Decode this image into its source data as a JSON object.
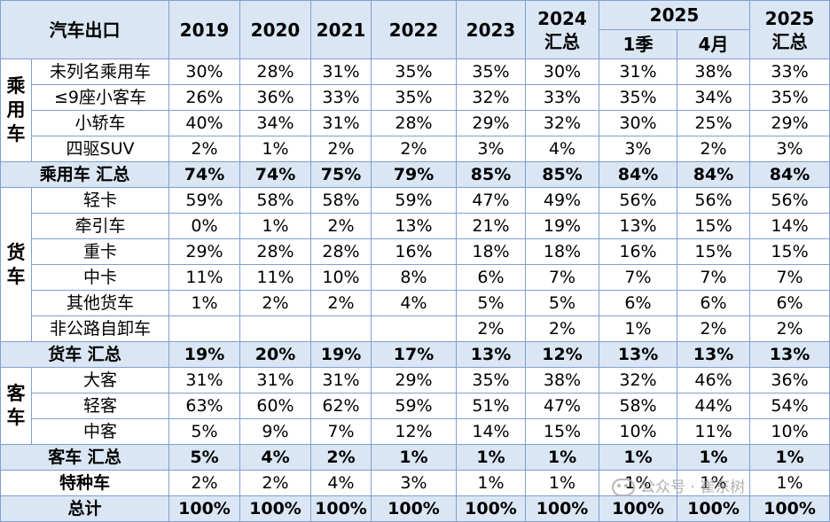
{
  "header": {
    "title": "汽车出口",
    "years": [
      "2019",
      "2020",
      "2021",
      "2022",
      "2023"
    ],
    "y2024_line1": "2024",
    "y2024_line2": "汇总",
    "y2025": "2025",
    "q1": "1季",
    "apr": "4月",
    "y2025sum_line1": "2025",
    "y2025sum_line2": "汇总"
  },
  "groups": [
    {
      "label": [
        "乘",
        "用",
        "车"
      ],
      "rows": [
        {
          "name": "未列名乘用车",
          "values": [
            "30%",
            "28%",
            "31%",
            "35%",
            "35%",
            "30%",
            "31%",
            "38%",
            "33%"
          ]
        },
        {
          "name": "≤9座小客车",
          "values": [
            "26%",
            "36%",
            "33%",
            "35%",
            "32%",
            "33%",
            "35%",
            "34%",
            "35%"
          ]
        },
        {
          "name": "小轿车",
          "values": [
            "40%",
            "34%",
            "31%",
            "28%",
            "29%",
            "32%",
            "30%",
            "25%",
            "29%"
          ]
        },
        {
          "name": "四驱SUV",
          "values": [
            "2%",
            "1%",
            "2%",
            "2%",
            "3%",
            "4%",
            "3%",
            "2%",
            "3%"
          ]
        }
      ],
      "summary": {
        "name": "乘用车 汇总",
        "values": [
          "74%",
          "74%",
          "75%",
          "79%",
          "85%",
          "85%",
          "84%",
          "84%",
          "84%"
        ]
      }
    },
    {
      "label": [
        "货",
        "车"
      ],
      "rows": [
        {
          "name": "轻卡",
          "values": [
            "59%",
            "58%",
            "58%",
            "59%",
            "47%",
            "49%",
            "56%",
            "56%",
            "56%"
          ]
        },
        {
          "name": "牵引车",
          "values": [
            "0%",
            "1%",
            "2%",
            "13%",
            "21%",
            "19%",
            "13%",
            "15%",
            "14%"
          ]
        },
        {
          "name": "重卡",
          "values": [
            "29%",
            "28%",
            "28%",
            "16%",
            "18%",
            "18%",
            "16%",
            "15%",
            "15%"
          ]
        },
        {
          "name": "中卡",
          "values": [
            "11%",
            "11%",
            "10%",
            "8%",
            "6%",
            "7%",
            "7%",
            "7%",
            "7%"
          ]
        },
        {
          "name": "其他货车",
          "values": [
            "1%",
            "2%",
            "2%",
            "4%",
            "5%",
            "5%",
            "6%",
            "6%",
            "6%"
          ]
        },
        {
          "name": "非公路自卸车",
          "values": [
            "",
            "",
            "",
            "",
            "2%",
            "2%",
            "1%",
            "2%",
            "2%"
          ]
        }
      ],
      "summary": {
        "name": "货车 汇总",
        "values": [
          "19%",
          "20%",
          "19%",
          "17%",
          "13%",
          "12%",
          "13%",
          "13%",
          "13%"
        ]
      }
    },
    {
      "label": [
        "客",
        "车"
      ],
      "rows": [
        {
          "name": "大客",
          "values": [
            "31%",
            "31%",
            "31%",
            "29%",
            "35%",
            "38%",
            "32%",
            "46%",
            "36%"
          ]
        },
        {
          "name": "轻客",
          "values": [
            "63%",
            "60%",
            "62%",
            "59%",
            "51%",
            "47%",
            "58%",
            "44%",
            "54%"
          ]
        },
        {
          "name": "中客",
          "values": [
            "5%",
            "9%",
            "7%",
            "12%",
            "14%",
            "15%",
            "10%",
            "11%",
            "10%"
          ]
        }
      ],
      "summary": {
        "name": "客车 汇总",
        "values": [
          "5%",
          "4%",
          "2%",
          "1%",
          "1%",
          "1%",
          "1%",
          "1%",
          "1%"
        ]
      }
    }
  ],
  "special": {
    "name": "特种车",
    "values": [
      "2%",
      "2%",
      "4%",
      "3%",
      "1%",
      "1%",
      "1%",
      "1%",
      "1%"
    ]
  },
  "total": {
    "name": "总计",
    "values": [
      "100%",
      "100%",
      "100%",
      "100%",
      "100%",
      "100%",
      "100%",
      "100%",
      "100%"
    ]
  },
  "watermark": {
    "text": "公众号 · 崔东树",
    "icon": "wechat-icon"
  }
}
